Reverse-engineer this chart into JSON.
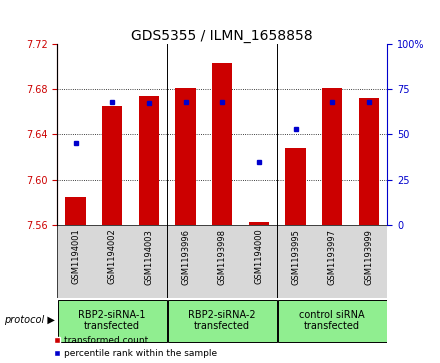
{
  "title": "GDS5355 / ILMN_1658858",
  "samples": [
    "GSM1194001",
    "GSM1194002",
    "GSM1194003",
    "GSM1193996",
    "GSM1193998",
    "GSM1194000",
    "GSM1193995",
    "GSM1193997",
    "GSM1193999"
  ],
  "red_values": [
    7.585,
    7.665,
    7.674,
    7.681,
    7.703,
    7.563,
    7.628,
    7.681,
    7.672
  ],
  "blue_percentiles": [
    45,
    68,
    67,
    68,
    68,
    35,
    53,
    68,
    68
  ],
  "ylim": [
    7.56,
    7.72
  ],
  "yticks": [
    7.56,
    7.6,
    7.64,
    7.68,
    7.72
  ],
  "right_yticks": [
    0,
    25,
    50,
    75,
    100
  ],
  "right_ylim": [
    0,
    100
  ],
  "groups": [
    {
      "label": "RBP2-siRNA-1\ntransfected",
      "start": 0,
      "end": 3,
      "color": "#90ee90"
    },
    {
      "label": "RBP2-siRNA-2\ntransfected",
      "start": 3,
      "end": 6,
      "color": "#90ee90"
    },
    {
      "label": "control siRNA\ntransfected",
      "start": 6,
      "end": 9,
      "color": "#90ee90"
    }
  ],
  "group_separators": [
    2.5,
    5.5
  ],
  "bar_color": "#cc0000",
  "dot_color": "#0000cc",
  "sample_bg": "#d8d8d8",
  "plot_bg": "#ffffff",
  "title_fontsize": 10,
  "tick_fontsize": 7,
  "sample_fontsize": 6,
  "group_fontsize": 7,
  "legend_fontsize": 6.5
}
